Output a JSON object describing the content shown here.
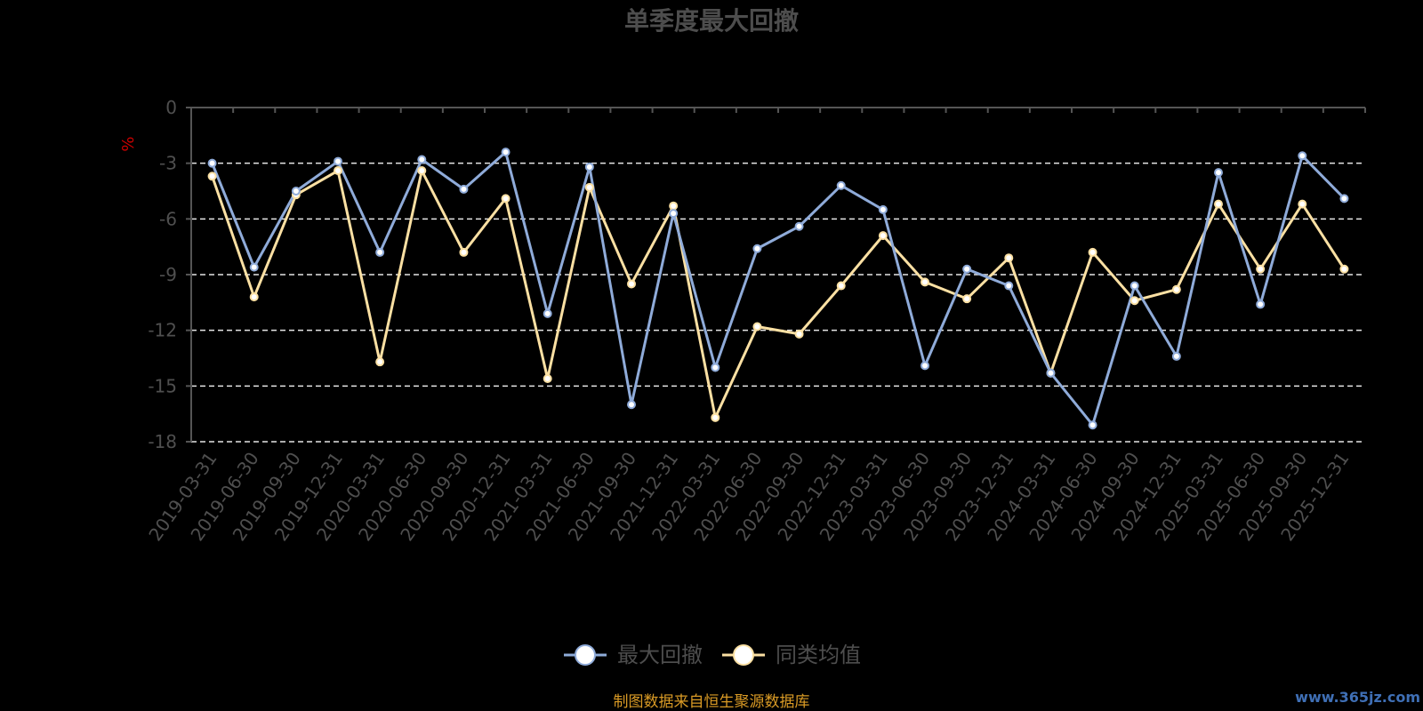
{
  "chart_data": {
    "type": "line",
    "title": "单季度最大回撤",
    "ylabel": "%",
    "ylim": [
      -18,
      0
    ],
    "yticks": [
      0,
      -3,
      -6,
      -9,
      -12,
      -15,
      -18
    ],
    "grid": true,
    "legend_position": "bottom",
    "categories": [
      "2019-03-31",
      "2019-06-30",
      "2019-09-30",
      "2019-12-31",
      "2020-03-31",
      "2020-06-30",
      "2020-09-30",
      "2020-12-31",
      "2021-03-31",
      "2021-06-30",
      "2021-09-30",
      "2021-12-31",
      "2022-03-31",
      "2022-06-30",
      "2022-09-30",
      "2022-12-31",
      "2023-03-31",
      "2023-06-30",
      "2023-09-30",
      "2023-12-31",
      "2024-03-31",
      "2024-06-30",
      "2024-09-30",
      "2024-12-31",
      "2025-03-31",
      "2025-06-30",
      "2025-09-30",
      "2025-12-31"
    ],
    "series": [
      {
        "name": "最大回撤",
        "color": "#8fabd9",
        "values": [
          -3.0,
          -8.6,
          -4.5,
          -2.9,
          -7.8,
          -2.8,
          -4.4,
          -2.4,
          -11.1,
          -3.2,
          -16.0,
          -5.7,
          -14.0,
          -7.6,
          -6.4,
          -4.2,
          -5.5,
          -13.9,
          -8.7,
          -9.6,
          -14.3,
          -17.1,
          -9.6,
          -13.4,
          -3.5,
          -10.6,
          -2.6,
          -4.9
        ]
      },
      {
        "name": "同类均值",
        "color": "#fbe0a3",
        "values": [
          -3.7,
          -10.2,
          -4.7,
          -3.4,
          -13.7,
          -3.4,
          -7.8,
          -4.9,
          -14.6,
          -4.3,
          -9.5,
          -5.3,
          -16.7,
          -11.8,
          -12.2,
          -9.6,
          -6.9,
          -9.4,
          -10.3,
          -8.1,
          -14.3,
          -7.8,
          -10.4,
          -9.8,
          -5.2,
          -8.7,
          -5.2,
          -8.7
        ]
      }
    ],
    "source": "制图数据来自恒生聚源数据库",
    "watermark": "www.365jz.com"
  },
  "colors": {
    "background": "#000000",
    "title": "#4d4d4d",
    "axis": "#555555",
    "tick_text": "#4f4f4f",
    "grid": "#e6e6e6",
    "ylabel": "#cc0000",
    "legend_text": "#4d4d4d",
    "source_text": "#d99a25",
    "watermark": "#3f6fb5"
  }
}
